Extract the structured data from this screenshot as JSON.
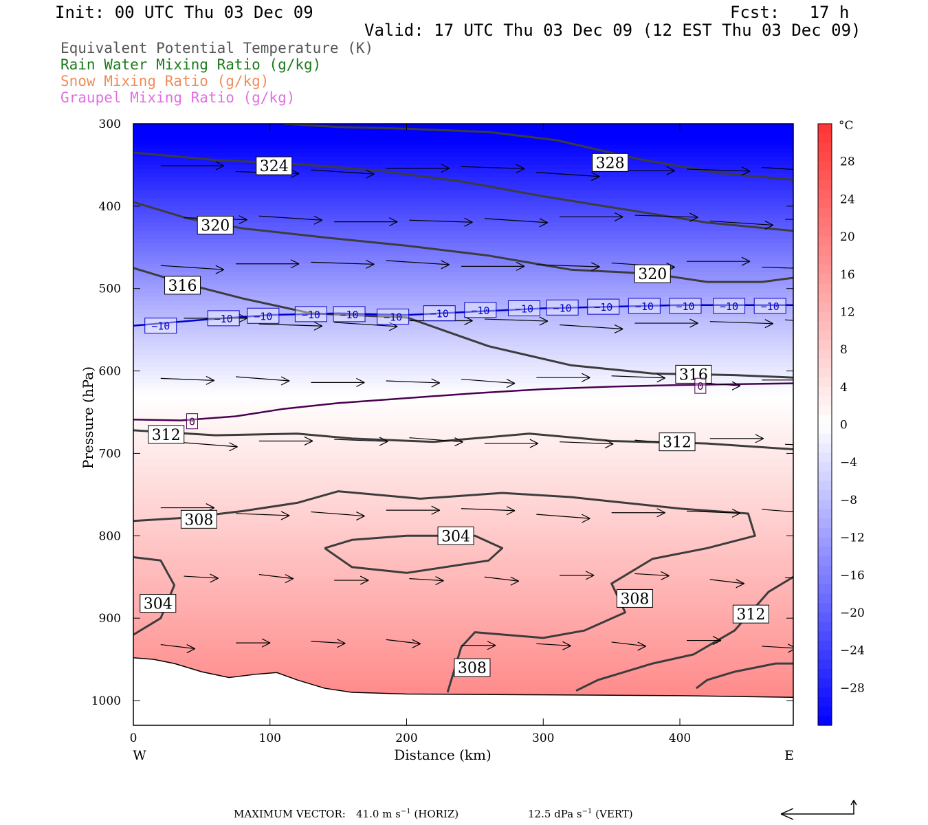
{
  "header": {
    "init": "Init: 00 UTC Thu 03 Dec 09",
    "fcst": "Fcst:   17 h",
    "valid": "Valid: 17 UTC Thu 03 Dec 09 (12 EST Thu 03 Dec 09)"
  },
  "legend": [
    {
      "text": "Equivalent Potential Temperature (K)",
      "color": "#555555"
    },
    {
      "text": "Rain Water Mixing Ratio (g/kg)",
      "color": "#1a7a1a"
    },
    {
      "text": "Snow Mixing Ratio (g/kg)",
      "color": "#f08c5a"
    },
    {
      "text": "Graupel Mixing Ratio (g/kg)",
      "color": "#e070e0"
    }
  ],
  "footer": {
    "max_vector_label": "MAXIMUM VECTOR:",
    "horiz_value": "41.0 m s",
    "horiz_unit": "(HORIZ)",
    "vert_value": "12.5 dPa s",
    "vert_unit": "(VERT)",
    "exponent": "−1"
  },
  "chart_data": {
    "type": "cross-section",
    "xlabel": "Distance (km)",
    "ylabel": "Pressure (hPa)",
    "xlim": [
      0,
      483
    ],
    "ylim": [
      1030,
      300
    ],
    "x_ticks": [
      0,
      100,
      200,
      300,
      400
    ],
    "y_ticks": [
      300,
      400,
      500,
      600,
      700,
      800,
      900,
      1000
    ],
    "x_end_labels": {
      "left": "W",
      "right": "E"
    },
    "colorbar": {
      "unit": "°C",
      "range": [
        -32,
        32
      ],
      "tick_labels": [
        28,
        24,
        20,
        16,
        12,
        8,
        4,
        0,
        -4,
        -8,
        -12,
        -16,
        -20,
        -24,
        -28
      ],
      "cold_color": "#0000ff",
      "warm_color": "#ff3333"
    },
    "temperature_contours": [
      {
        "label": "-10",
        "color": "#0000cc",
        "points": [
          [
            0,
            545
          ],
          [
            50,
            538
          ],
          [
            100,
            532
          ],
          [
            150,
            530
          ],
          [
            200,
            532
          ],
          [
            250,
            528
          ],
          [
            300,
            524
          ],
          [
            350,
            522
          ],
          [
            400,
            520
          ],
          [
            483,
            520
          ]
        ],
        "label_positions": [
          [
            20,
            545
          ],
          [
            66,
            536
          ],
          [
            95,
            533
          ],
          [
            130,
            531
          ],
          [
            158,
            531
          ],
          [
            190,
            534
          ],
          [
            224,
            530
          ],
          [
            254,
            526
          ],
          [
            286,
            524
          ],
          [
            314,
            523
          ],
          [
            344,
            522
          ],
          [
            374,
            521
          ],
          [
            404,
            521
          ],
          [
            436,
            521
          ],
          [
            466,
            521
          ]
        ]
      },
      {
        "label": "0",
        "color": "#4a0050",
        "points": [
          [
            0,
            659
          ],
          [
            35,
            660
          ],
          [
            75,
            655
          ],
          [
            110,
            646
          ],
          [
            150,
            639
          ],
          [
            200,
            633
          ],
          [
            250,
            627
          ],
          [
            300,
            622
          ],
          [
            350,
            619
          ],
          [
            400,
            617
          ],
          [
            483,
            615
          ]
        ],
        "label_positions": [
          [
            43,
            661
          ],
          [
            415,
            618
          ]
        ]
      }
    ],
    "theta_e_contours": [
      {
        "label": "328",
        "points": [
          [
            110,
            300
          ],
          [
            150,
            304
          ],
          [
            200,
            306
          ],
          [
            260,
            310
          ],
          [
            310,
            320
          ],
          [
            370,
            343
          ],
          [
            430,
            360
          ],
          [
            483,
            368
          ]
        ],
        "label_positions": [
          [
            349,
            347
          ]
        ]
      },
      {
        "label": "324",
        "points": [
          [
            0,
            335
          ],
          [
            60,
            344
          ],
          [
            120,
            349
          ],
          [
            180,
            357
          ],
          [
            240,
            370
          ],
          [
            300,
            388
          ],
          [
            360,
            404
          ],
          [
            420,
            420
          ],
          [
            483,
            430
          ]
        ],
        "label_positions": [
          [
            103,
            351
          ]
        ]
      },
      {
        "label": "320",
        "points": [
          [
            0,
            395
          ],
          [
            40,
            415
          ],
          [
            80,
            427
          ],
          [
            140,
            438
          ],
          [
            200,
            448
          ],
          [
            260,
            460
          ],
          [
            320,
            477
          ],
          [
            380,
            482
          ],
          [
            420,
            492
          ],
          [
            460,
            492
          ],
          [
            483,
            487
          ]
        ],
        "label_positions": [
          [
            60,
            423
          ],
          [
            380,
            482
          ]
        ]
      },
      {
        "label": "316",
        "points": [
          [
            0,
            475
          ],
          [
            40,
            495
          ],
          [
            80,
            512
          ],
          [
            130,
            530
          ],
          [
            200,
            535
          ],
          [
            260,
            570
          ],
          [
            320,
            593
          ],
          [
            380,
            603
          ],
          [
            440,
            605
          ],
          [
            483,
            608
          ]
        ],
        "label_positions": [
          [
            36,
            496
          ],
          [
            410,
            604
          ]
        ]
      },
      {
        "label": "312",
        "points": [
          [
            0,
            672
          ],
          [
            60,
            678
          ],
          [
            120,
            676
          ],
          [
            160,
            682
          ],
          [
            220,
            686
          ],
          [
            290,
            676
          ],
          [
            350,
            685
          ],
          [
            420,
            688
          ],
          [
            483,
            695
          ]
        ],
        "label_positions": [
          [
            24,
            677
          ],
          [
            398,
            686
          ]
        ]
      },
      {
        "label": "308",
        "points": [
          [
            0,
            782
          ],
          [
            40,
            778
          ],
          [
            80,
            770
          ],
          [
            120,
            760
          ],
          [
            150,
            746
          ],
          [
            210,
            755
          ],
          [
            270,
            748
          ],
          [
            320,
            753
          ],
          [
            360,
            760
          ],
          [
            400,
            767
          ],
          [
            450,
            773
          ],
          [
            455,
            800
          ],
          [
            420,
            815
          ],
          [
            380,
            828
          ],
          [
            350,
            858
          ],
          [
            360,
            893
          ],
          [
            330,
            915
          ],
          [
            300,
            924
          ],
          [
            250,
            917
          ],
          [
            240,
            935
          ],
          [
            230,
            990
          ]
        ],
        "label_positions": [
          [
            48,
            780
          ],
          [
            367,
            876
          ],
          [
            248,
            960
          ]
        ]
      },
      {
        "label": "304",
        "points": [
          [
            0,
            826
          ],
          [
            20,
            830
          ],
          [
            30,
            860
          ],
          [
            20,
            900
          ],
          [
            0,
            920
          ]
        ],
        "label_positions": [
          [
            18,
            882
          ]
        ]
      },
      {
        "label": "304",
        "points": [
          [
            140,
            815
          ],
          [
            160,
            805
          ],
          [
            200,
            800
          ],
          [
            250,
            800
          ],
          [
            270,
            815
          ],
          [
            260,
            830
          ],
          [
            200,
            845
          ],
          [
            160,
            838
          ],
          [
            140,
            815
          ]
        ],
        "label_positions": [
          [
            236,
            800
          ]
        ]
      },
      {
        "label": "312",
        "points": [
          [
            324,
            988
          ],
          [
            340,
            975
          ],
          [
            380,
            955
          ],
          [
            410,
            944
          ],
          [
            440,
            915
          ],
          [
            465,
            868
          ],
          [
            483,
            850
          ]
        ],
        "label_positions": [
          [
            452,
            895
          ]
        ]
      },
      {
        "label": "312",
        "points": [
          [
            412,
            985
          ],
          [
            420,
            975
          ],
          [
            440,
            965
          ],
          [
            470,
            955
          ],
          [
            483,
            955
          ]
        ],
        "label_positions": []
      }
    ],
    "terrain_pressure": [
      [
        0,
        948
      ],
      [
        15,
        950
      ],
      [
        30,
        955
      ],
      [
        50,
        965
      ],
      [
        70,
        972
      ],
      [
        90,
        968
      ],
      [
        105,
        966
      ],
      [
        120,
        975
      ],
      [
        140,
        985
      ],
      [
        160,
        990
      ],
      [
        200,
        992
      ],
      [
        300,
        993
      ],
      [
        400,
        994
      ],
      [
        483,
        996
      ]
    ]
  }
}
